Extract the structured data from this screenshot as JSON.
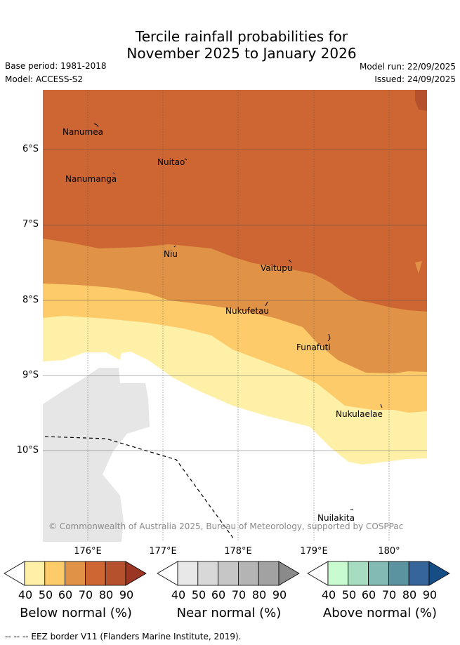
{
  "title": {
    "line1": "Tercile rainfall probabilities for",
    "line2": "November 2025 to January 2026"
  },
  "meta": {
    "base_period": "Base period: 1981-2018",
    "model": "Model: ACCESS-S2",
    "model_run": "Model run: 22/09/2025",
    "issued": "Issued: 24/09/2025"
  },
  "axes": {
    "lat_labels": [
      "6°S",
      "7°S",
      "8°S",
      "9°S",
      "10°S"
    ],
    "lon_labels": [
      "176°E",
      "177°E",
      "178°E",
      "179°E",
      "180°"
    ]
  },
  "places": [
    "Nanumea",
    "Nuitao",
    "Nanumanga",
    "Niu",
    "Vaitupu",
    "Nukufetau",
    "Funafuti",
    "Nukulaelae",
    "Nuilakita"
  ],
  "copyright": "© Commonwealth of Australia 2025, Bureau of Meteorology, supported by COSPPac",
  "colorbars": {
    "ticks": [
      "40",
      "50",
      "60",
      "70",
      "80",
      "90"
    ],
    "below": {
      "title": "Below normal (%)",
      "colors": [
        "#ffffff",
        "#fff0a8",
        "#fecb6a",
        "#e09347",
        "#cd6633",
        "#b5512c",
        "#9b3524"
      ]
    },
    "near": {
      "title": "Near normal (%)",
      "colors": [
        "#ffffff",
        "#e8e8e8",
        "#d8d8d8",
        "#c6c6c6",
        "#b4b4b4",
        "#a2a2a2",
        "#8a8a8a"
      ]
    },
    "above": {
      "title": "Above normal (%)",
      "colors": [
        "#ffffff",
        "#c9fbd0",
        "#a6dcc0",
        "#83bab4",
        "#5b93a0",
        "#35659a",
        "#154d84"
      ]
    }
  },
  "footer": "--  --  -- EEZ border V11 (Flanders Marine Institute, 2019)."
}
